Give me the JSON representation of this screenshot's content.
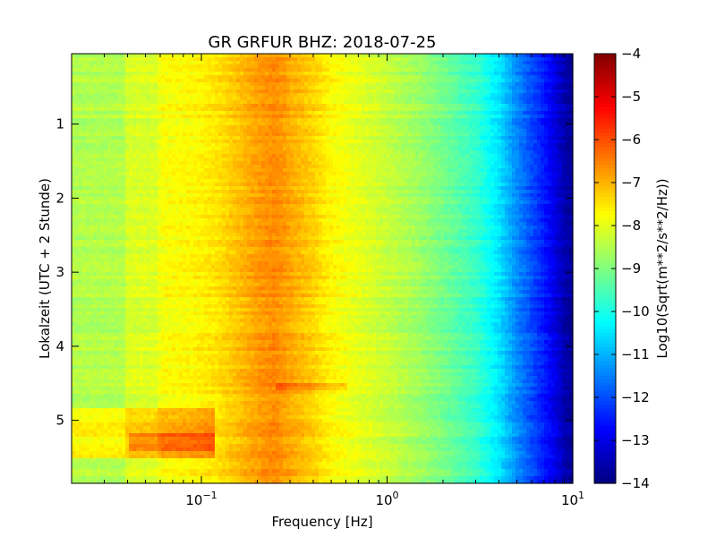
{
  "chart_data": {
    "type": "heatmap",
    "title": "GR GRFUR BHZ: 2018-07-25",
    "xlabel": "Frequency [Hz]",
    "ylabel": "Lokalzeit (UTC + 2 Stunde)",
    "colorbar_label": "Log10(Sqrt(m**2/s**2/Hz))",
    "x_scale": "log",
    "xlim": [
      0.02,
      10
    ],
    "ylim": [
      5.85,
      0.05
    ],
    "x_ticks": [
      {
        "value": 0.1,
        "base": "10",
        "exp": "−1"
      },
      {
        "value": 1,
        "base": "10",
        "exp": "0"
      },
      {
        "value": 10,
        "base": "10",
        "exp": "1"
      }
    ],
    "y_ticks": [
      {
        "value": 1,
        "label": "1"
      },
      {
        "value": 2,
        "label": "2"
      },
      {
        "value": 3,
        "label": "3"
      },
      {
        "value": 4,
        "label": "4"
      },
      {
        "value": 5,
        "label": "5"
      }
    ],
    "colorbar_range": [
      -14,
      -4
    ],
    "colorbar_ticks": [
      {
        "value": -4,
        "label": "−4"
      },
      {
        "value": -5,
        "label": "−5"
      },
      {
        "value": -6,
        "label": "−6"
      },
      {
        "value": -7,
        "label": "−7"
      },
      {
        "value": -8,
        "label": "−8"
      },
      {
        "value": -9,
        "label": "−9"
      },
      {
        "value": -10,
        "label": "−10"
      },
      {
        "value": -11,
        "label": "−11"
      },
      {
        "value": -12,
        "label": "−12"
      },
      {
        "value": -13,
        "label": "−13"
      },
      {
        "value": -14,
        "label": "−14"
      }
    ],
    "colormap": "jet",
    "frequency_profile": {
      "frequency_hz": [
        0.02,
        0.038,
        0.04,
        0.058,
        0.06,
        0.09,
        0.12,
        0.15,
        0.2,
        0.25,
        0.3,
        0.4,
        0.5,
        0.7,
        1.0,
        1.5,
        2.0,
        3.0,
        4.0,
        5.0,
        6.0,
        7.0,
        8.0,
        9.0,
        10.0
      ],
      "log10_amplitude": [
        -8.5,
        -8.5,
        -8.1,
        -8.1,
        -7.8,
        -7.7,
        -7.5,
        -7.2,
        -6.8,
        -6.6,
        -6.9,
        -7.3,
        -7.7,
        -8.0,
        -8.3,
        -8.7,
        -9.1,
        -9.7,
        -10.5,
        -11.4,
        -12.0,
        -12.5,
        -13.0,
        -13.5,
        -13.8
      ]
    },
    "events": [
      {
        "time_start": 4.85,
        "time_end": 5.5,
        "freq_min": 0.02,
        "freq_max": 0.12,
        "delta_log10": 0.8
      },
      {
        "time_start": 5.15,
        "time_end": 5.4,
        "freq_min": 0.04,
        "freq_max": 0.12,
        "delta_log10": 0.7
      },
      {
        "time_start": 4.5,
        "time_end": 4.6,
        "freq_min": 0.25,
        "freq_max": 0.6,
        "delta_log10": 0.5
      }
    ]
  }
}
